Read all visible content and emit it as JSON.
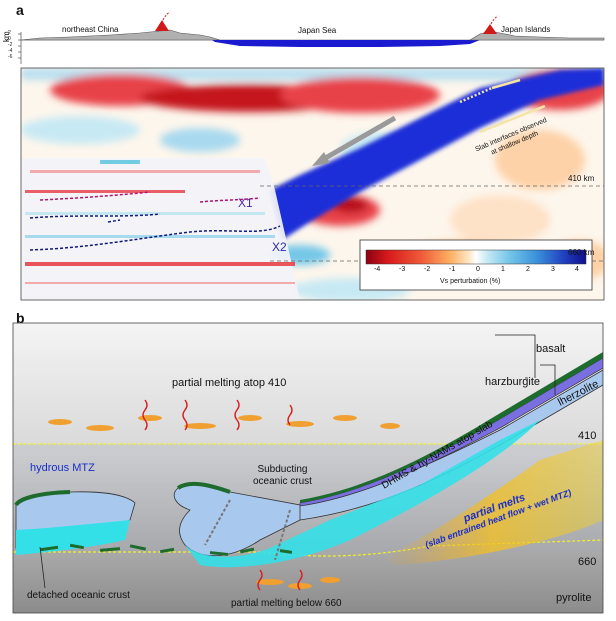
{
  "panel_a": {
    "label": "a",
    "topo": {
      "km": "km",
      "ticks": [
        "2",
        "0",
        "-2",
        "-4",
        "-6"
      ],
      "left_region": "northeast China",
      "mid_region": "Japan Sea",
      "right_region": "Japan Islands"
    },
    "depth_410": "410 km",
    "depth_660": "660 km",
    "x1": "X1",
    "x2": "X2",
    "slab_note_line1": "Slab interfaces observed",
    "slab_note_line2": "at shallow depth",
    "colorbar": {
      "ticks": [
        "-4",
        "-3",
        "-2",
        "-1",
        "0",
        "1",
        "2",
        "3",
        "4"
      ],
      "title": "Vs perturbation (%)",
      "colors": [
        "#8c0010",
        "#d7191c",
        "#ef5a3a",
        "#fdae61",
        "#fee8c8",
        "#ffffff",
        "#c7e9f4",
        "#74c7e8",
        "#3a8fd9",
        "#2040c0",
        "#10108c"
      ]
    }
  },
  "panel_b": {
    "label": "b",
    "basalt": "basalt",
    "harzburgite": "harzburgite",
    "lherzolite": "lherzolite",
    "partial_melting_410": "partial melting atop 410",
    "hydrous_mtz": "hydrous MTZ",
    "dhms": "DHMS & hy-NAMs atop slab",
    "subducting1": "Subducting",
    "subducting2": "oceanic crust",
    "d410": "410",
    "d660": "660",
    "partial_melts": "partial melts",
    "partial_melts_sub": "(slab entrained heat flow + wet MTZ)",
    "detached": "detached oceanic crust",
    "partial_melting_660": "partial melting below 660",
    "pyrolite": "pyrolite",
    "colors": {
      "basalt": "#1e6b2e",
      "harzburgite": "#7a6fe0",
      "lherzolite": "#a9c8ee",
      "mtz_crust": "#34e0e8"
    }
  }
}
